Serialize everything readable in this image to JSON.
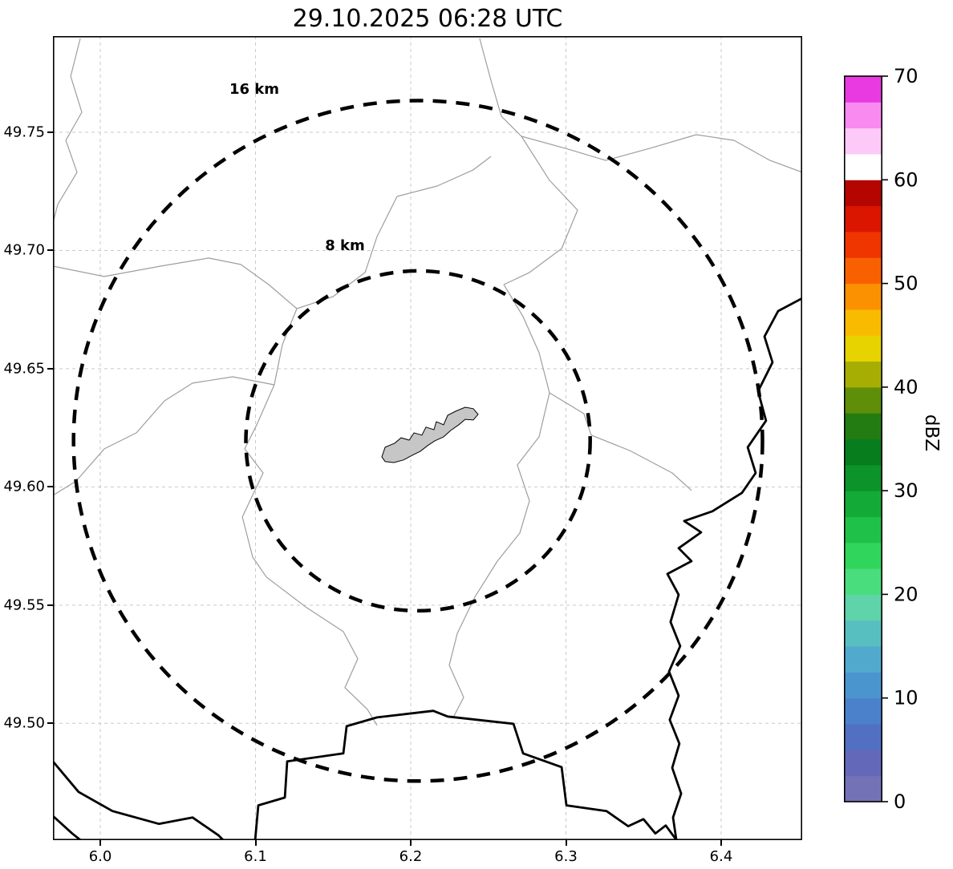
{
  "title": "29.10.2025 06:28 UTC",
  "map": {
    "extent": {
      "lon_min": 5.9695,
      "lon_max": 6.4522,
      "lat_min": 49.4506,
      "lat_max": 49.7907
    },
    "x_axis": {
      "ticks": [
        {
          "label": "6.0",
          "value": 6.0
        },
        {
          "label": "6.1",
          "value": 6.1
        },
        {
          "label": "6.2",
          "value": 6.2
        },
        {
          "label": "6.3",
          "value": 6.3
        },
        {
          "label": "6.4",
          "value": 6.4
        }
      ]
    },
    "y_axis": {
      "ticks": [
        {
          "label": "49.50",
          "value": 49.5
        },
        {
          "label": "49.55",
          "value": 49.55
        },
        {
          "label": "49.60",
          "value": 49.6
        },
        {
          "label": "49.65",
          "value": 49.65
        },
        {
          "label": "49.70",
          "value": 49.7
        },
        {
          "label": "49.75",
          "value": 49.75
        }
      ]
    },
    "radar_center": {
      "lon": 6.2047,
      "lat": 49.6195
    },
    "range_rings": [
      {
        "label": "8 km",
        "radius_km": 8,
        "radius_deg_lon": 0.1109,
        "radius_deg_lat": 0.0719,
        "label_lon": 6.1576,
        "label_lat": 49.7002
      },
      {
        "label": "16 km",
        "radius_km": 16,
        "radius_deg_lon": 0.2219,
        "radius_deg_lat": 0.1439,
        "label_lon": 6.0992,
        "label_lat": 49.7663
      }
    ],
    "styles": {
      "ring_color": "#000000",
      "boundary_color": "#9e9e9e",
      "border_color": "#000000",
      "grid_color": "#c9c9c9",
      "urban_fill": "#c6c6c6"
    },
    "admin_boundaries": [
      [
        [
          5.9871,
          49.7897
        ],
        [
          5.9809,
          49.7737
        ],
        [
          5.9881,
          49.7585
        ],
        [
          5.9778,
          49.7466
        ],
        [
          5.985,
          49.7331
        ],
        [
          5.9726,
          49.7195
        ],
        [
          5.9695,
          49.7117
        ]
      ],
      [
        [
          5.9695,
          49.6934
        ],
        [
          6.0026,
          49.689
        ],
        [
          6.0388,
          49.6934
        ],
        [
          6.0698,
          49.6968
        ],
        [
          6.0905,
          49.6941
        ],
        [
          6.1085,
          49.6856
        ],
        [
          6.1266,
          49.6754
        ]
      ],
      [
        [
          6.1912,
          49.7229
        ],
        [
          6.1783,
          49.7059
        ],
        [
          6.1706,
          49.6907
        ],
        [
          6.1499,
          49.6805
        ],
        [
          6.1266,
          49.6754
        ],
        [
          6.1173,
          49.6602
        ],
        [
          6.1121,
          49.6432
        ],
        [
          6.1008,
          49.6263
        ],
        [
          6.093,
          49.6161
        ],
        [
          6.1049,
          49.6059
        ],
        [
          6.0915,
          49.5873
        ],
        [
          6.0982,
          49.5703
        ],
        [
          6.107,
          49.5619
        ],
        [
          6.1328,
          49.549
        ],
        [
          6.1566,
          49.5388
        ],
        [
          6.1659,
          49.5273
        ],
        [
          6.1576,
          49.5151
        ],
        [
          6.1721,
          49.5059
        ],
        [
          6.1783,
          49.4992
        ]
      ],
      [
        [
          6.2444,
          49.7897
        ],
        [
          6.2517,
          49.772
        ],
        [
          6.2584,
          49.7568
        ],
        [
          6.2713,
          49.7483
        ],
        [
          6.2997,
          49.7432
        ],
        [
          6.3256,
          49.7381
        ],
        [
          6.354,
          49.7432
        ],
        [
          6.384,
          49.749
        ],
        [
          6.4083,
          49.7466
        ],
        [
          6.4315,
          49.7381
        ],
        [
          6.4522,
          49.7331
        ]
      ],
      [
        [
          6.1912,
          49.7229
        ],
        [
          6.2171,
          49.7273
        ],
        [
          6.2403,
          49.7341
        ],
        [
          6.2517,
          49.7398
        ]
      ],
      [
        [
          6.2713,
          49.7483
        ],
        [
          6.2894,
          49.7297
        ],
        [
          6.3075,
          49.7171
        ],
        [
          6.2972,
          49.7008
        ],
        [
          6.2765,
          49.6907
        ],
        [
          6.26,
          49.6856
        ],
        [
          6.2724,
          49.672
        ],
        [
          6.2827,
          49.6568
        ],
        [
          6.2894,
          49.6398
        ],
        [
          6.2827,
          49.6212
        ],
        [
          6.2687,
          49.6093
        ],
        [
          6.2765,
          49.5941
        ],
        [
          6.2703,
          49.5805
        ],
        [
          6.2558,
          49.5686
        ],
        [
          6.2413,
          49.5534
        ],
        [
          6.23,
          49.5381
        ],
        [
          6.2248,
          49.5246
        ],
        [
          6.2341,
          49.511
        ],
        [
          6.2274,
          49.5025
        ]
      ],
      [
        [
          6.2894,
          49.6398
        ],
        [
          6.3116,
          49.631
        ],
        [
          6.3163,
          49.6219
        ],
        [
          6.3411,
          49.6154
        ],
        [
          6.3685,
          49.6059
        ],
        [
          6.3809,
          49.5985
        ]
      ],
      [
        [
          6.1121,
          49.6432
        ],
        [
          6.0853,
          49.6466
        ],
        [
          6.0594,
          49.6439
        ],
        [
          6.0413,
          49.6364
        ],
        [
          6.0233,
          49.6229
        ],
        [
          6.0026,
          49.6161
        ],
        [
          5.9845,
          49.6025
        ],
        [
          5.9695,
          49.5964
        ]
      ]
    ],
    "country_borders": [
      [
        [
          6.4522,
          49.6798
        ],
        [
          6.4367,
          49.6744
        ],
        [
          6.4279,
          49.6636
        ],
        [
          6.4331,
          49.6527
        ],
        [
          6.4238,
          49.6405
        ],
        [
          6.4289,
          49.628
        ],
        [
          6.4171,
          49.6168
        ],
        [
          6.4222,
          49.6059
        ],
        [
          6.4134,
          49.5975
        ],
        [
          6.3943,
          49.5897
        ],
        [
          6.3762,
          49.5856
        ],
        [
          6.3871,
          49.5808
        ],
        [
          6.3726,
          49.5741
        ],
        [
          6.3809,
          49.5686
        ],
        [
          6.3654,
          49.5632
        ],
        [
          6.3726,
          49.5544
        ],
        [
          6.3674,
          49.5429
        ],
        [
          6.3736,
          49.5327
        ],
        [
          6.3664,
          49.5219
        ],
        [
          6.3726,
          49.5117
        ],
        [
          6.3669,
          49.5015
        ],
        [
          6.3731,
          49.4914
        ],
        [
          6.3685,
          49.4812
        ],
        [
          6.3742,
          49.4703
        ],
        [
          6.369,
          49.4602
        ],
        [
          6.3711,
          49.4507
        ]
      ],
      [
        [
          6.0998,
          49.4507
        ],
        [
          6.1018,
          49.4653
        ],
        [
          6.1189,
          49.4686
        ],
        [
          6.1204,
          49.4839
        ],
        [
          6.1566,
          49.4873
        ],
        [
          6.1587,
          49.4988
        ],
        [
          6.1783,
          49.5025
        ],
        [
          6.2145,
          49.5053
        ],
        [
          6.2238,
          49.5029
        ],
        [
          6.2662,
          49.4998
        ],
        [
          6.2724,
          49.4873
        ],
        [
          6.2972,
          49.4815
        ],
        [
          6.3003,
          49.4653
        ],
        [
          6.3261,
          49.4629
        ],
        [
          6.3401,
          49.4565
        ],
        [
          6.3499,
          49.4595
        ],
        [
          6.3576,
          49.4534
        ],
        [
          6.3643,
          49.4568
        ],
        [
          6.3711,
          49.4507
        ]
      ],
      [
        [
          5.9695,
          49.4839
        ],
        [
          5.986,
          49.471
        ],
        [
          6.0078,
          49.4629
        ],
        [
          6.0377,
          49.4575
        ],
        [
          6.0594,
          49.4602
        ],
        [
          6.076,
          49.4527
        ],
        [
          6.0791,
          49.4507
        ]
      ],
      [
        [
          5.9695,
          49.4608
        ],
        [
          5.9819,
          49.4534
        ],
        [
          5.9871,
          49.4507
        ]
      ]
    ],
    "urban_area": [
      [
        6.1814,
        49.6127
      ],
      [
        6.1835,
        49.6168
      ],
      [
        6.1897,
        49.6185
      ],
      [
        6.1938,
        49.6208
      ],
      [
        6.199,
        49.6198
      ],
      [
        6.2021,
        49.6229
      ],
      [
        6.2072,
        49.6219
      ],
      [
        6.2098,
        49.6253
      ],
      [
        6.215,
        49.6242
      ],
      [
        6.2165,
        49.6276
      ],
      [
        6.2212,
        49.6263
      ],
      [
        6.2238,
        49.6303
      ],
      [
        6.2289,
        49.632
      ],
      [
        6.2351,
        49.6337
      ],
      [
        6.2403,
        49.6331
      ],
      [
        6.2434,
        49.6307
      ],
      [
        6.2403,
        49.6283
      ],
      [
        6.2351,
        49.6286
      ],
      [
        6.231,
        49.6263
      ],
      [
        6.2258,
        49.6239
      ],
      [
        6.2212,
        49.6212
      ],
      [
        6.2155,
        49.6195
      ],
      [
        6.2109,
        49.6175
      ],
      [
        6.2062,
        49.6151
      ],
      [
        6.201,
        49.6134
      ],
      [
        6.1953,
        49.6114
      ],
      [
        6.1891,
        49.6103
      ],
      [
        6.1835,
        49.6107
      ]
    ]
  },
  "colorbar": {
    "label": "dBZ",
    "min": 0,
    "max": 70,
    "segment_step": 2.5,
    "ticks": [
      {
        "label": "0",
        "value": 0
      },
      {
        "label": "10",
        "value": 10
      },
      {
        "label": "20",
        "value": 20
      },
      {
        "label": "30",
        "value": 30
      },
      {
        "label": "40",
        "value": 40
      },
      {
        "label": "50",
        "value": 50
      },
      {
        "label": "60",
        "value": 60
      },
      {
        "label": "70",
        "value": 70
      }
    ],
    "colors": [
      "#7472b6",
      "#6468b9",
      "#5270c2",
      "#4a81ca",
      "#4b95cf",
      "#51aacd",
      "#58bfc0",
      "#5fd3aa",
      "#49dd7e",
      "#30d55c",
      "#1fc148",
      "#13aa37",
      "#0c9329",
      "#077d1e",
      "#237c11",
      "#5f8e09",
      "#a7ae03",
      "#e6d300",
      "#f9bb00",
      "#fb9100",
      "#f96100",
      "#ef3500",
      "#da1500",
      "#b40500",
      "#ffffff",
      "#fdc9f8",
      "#f98af0",
      "#e93ae1"
    ]
  }
}
